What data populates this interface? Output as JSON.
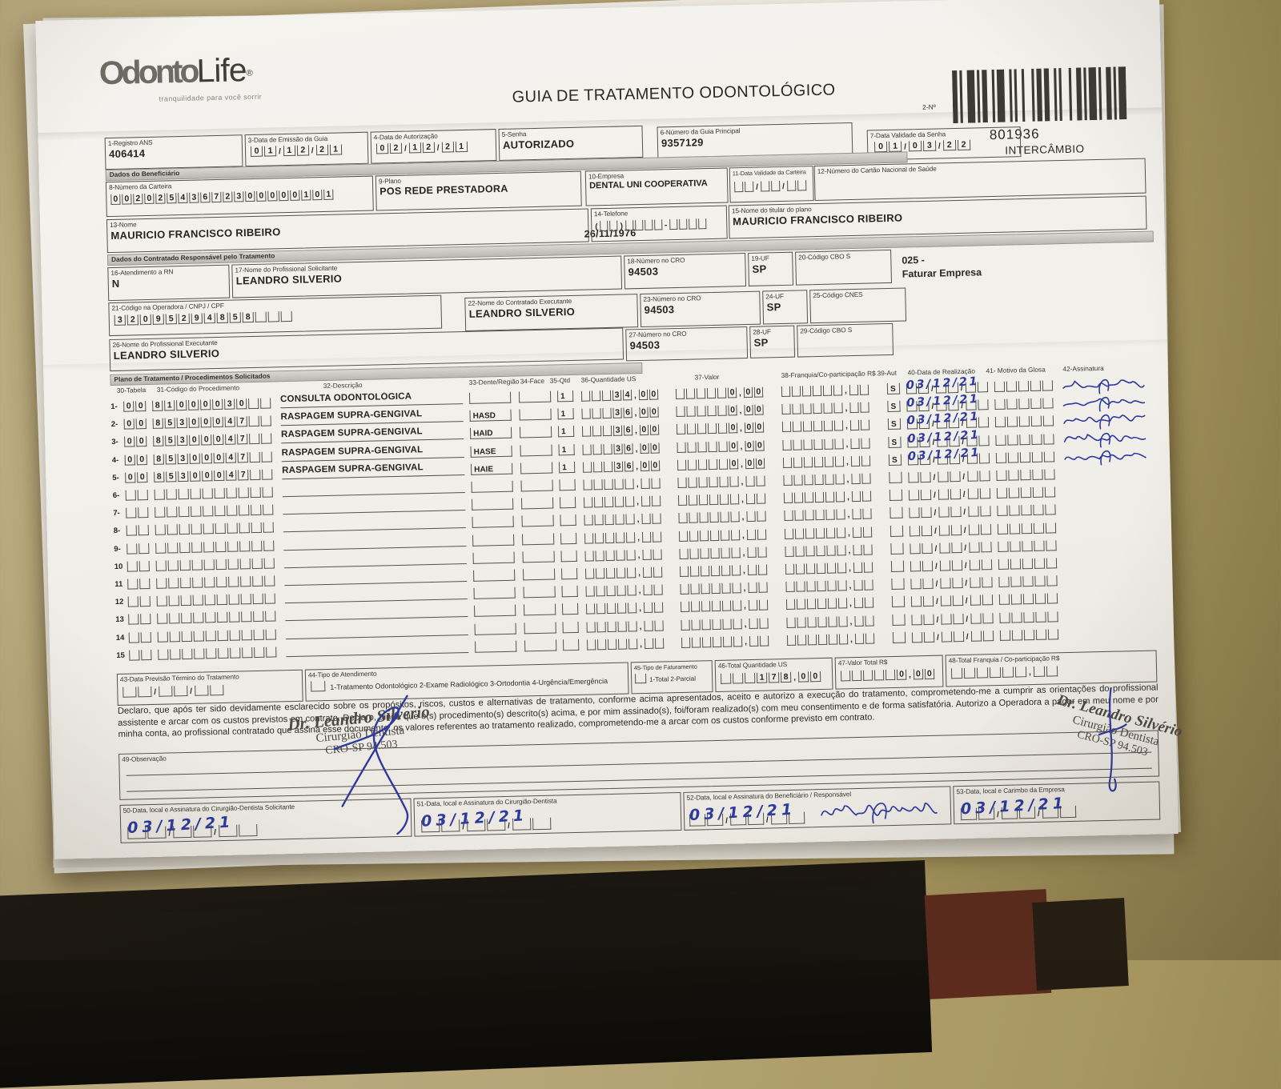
{
  "colors": {
    "hand_ink": "#2e3a9e",
    "print_ink": "#2b2824",
    "paper": "#f1efe9",
    "desk": "#b5a476",
    "bar_gray": "#c7c5bf"
  },
  "logo": {
    "word1": "Odonto",
    "word2": "Life",
    "reg": "®",
    "tagline": "tranquilidade para você sorrir"
  },
  "title": "GUIA DE TRATAMENTO ODONTOLÓGICO",
  "code_area": {
    "n_label": "2-Nº",
    "number": "801936",
    "tag": "INTERCÂMBIO"
  },
  "sections": {
    "beneficiario": "Dados do Beneficiário",
    "contratado": "Dados do Contratado Responsável pelo Tratamento",
    "plano": "Plano de Tratamento / Procedimentos Solicitados"
  },
  "f1": {
    "label": "1-Registro ANS",
    "value": "406414"
  },
  "f3": {
    "label": "3-Data de Emissão da Guia",
    "value": "01/12/21"
  },
  "f4": {
    "label": "4-Data de Autorização",
    "value": "02/12/21"
  },
  "f5": {
    "label": "5-Senha",
    "value": "AUTORIZADO"
  },
  "f6": {
    "label": "6-Número da Guia Principal",
    "value": "9357129"
  },
  "f7": {
    "label": "7-Data Validade da Senha",
    "value": "01/03/22"
  },
  "f8": {
    "label": "8-Número da Carteira",
    "value": "00202543672300000101"
  },
  "f9": {
    "label": "9-Plano",
    "value": "POS REDE PRESTADORA"
  },
  "f10": {
    "label": "10-Empresa",
    "value": "DENTAL UNI  COOPERATIVA"
  },
  "f11": {
    "label": "11-Data Validade da Carteira",
    "value": ""
  },
  "f12": {
    "label": "12-Número do Cartão Nacional de Saúde",
    "value": ""
  },
  "f13": {
    "label": "13-Nome",
    "value": "MAURICIO FRANCISCO RIBEIRO",
    "birthdate": "26/11/1976"
  },
  "f14": {
    "label": "14-Telefone",
    "value": ""
  },
  "f15": {
    "label": "15-Nome do titular do plano",
    "value": "MAURICIO FRANCISCO RIBEIRO"
  },
  "f16": {
    "label": "16-Atendimento a RN",
    "value": "N"
  },
  "f17": {
    "label": "17-Nome do Profissional Solicitante",
    "value": "LEANDRO SILVERIO"
  },
  "f18": {
    "label": "18-Número no CRO",
    "value": "94503"
  },
  "f19": {
    "label": "19-UF",
    "value": "SP"
  },
  "f20": {
    "label": "20-Código CBO S",
    "value": ""
  },
  "billing_note": {
    "line1": "025 -",
    "line2": "Faturar Empresa"
  },
  "f21": {
    "label": "21-Código na Operadora / CNPJ / CPF",
    "value": "32095294858"
  },
  "f22": {
    "label": "22-Nome do Contratado Executante",
    "value": "LEANDRO SILVERIO"
  },
  "f23": {
    "label": "23-Número no CRO",
    "value": "94503"
  },
  "f24": {
    "label": "24-UF",
    "value": "SP"
  },
  "f25": {
    "label": "25-Código CNES",
    "value": ""
  },
  "f26": {
    "label": "26-Nome do Profissional Executante",
    "value": "LEANDRO SILVERIO"
  },
  "f27": {
    "label": "27-Número no CRO",
    "value": "94503"
  },
  "f28": {
    "label": "28-UF",
    "value": "SP"
  },
  "f29": {
    "label": "29-Código CBO S",
    "value": ""
  },
  "table": {
    "headers": [
      "30-Tabela",
      "31-Código do Procedimento",
      "32-Descrição",
      "33-Dente/Região",
      "34-Face",
      "35-Qtd",
      "36-Quantidade US",
      "37-Valor",
      "38-Franquia/Co-participação R$",
      "39-Aut",
      "40-Data de Realização",
      "41- Motivo da Glosa",
      "42-Assinatura"
    ],
    "rows": [
      {
        "n": "1",
        "tabela": "00",
        "codigo": "81000030",
        "descricao": "CONSULTA ODONTOLÓGICA",
        "dente": "",
        "qtd": "1",
        "us": "34,00",
        "valor": "0,00",
        "franquia": "",
        "aut": "S",
        "data": "03/12/21",
        "signed": true
      },
      {
        "n": "2",
        "tabela": "00",
        "codigo": "85300047",
        "descricao": "RASPAGEM SUPRA-GENGIVAL",
        "dente": "HASD",
        "qtd": "1",
        "us": "36,00",
        "valor": "0,00",
        "franquia": "",
        "aut": "S",
        "data": "03/12/21",
        "signed": true
      },
      {
        "n": "3",
        "tabela": "00",
        "codigo": "85300047",
        "descricao": "RASPAGEM SUPRA-GENGIVAL",
        "dente": "HAID",
        "qtd": "1",
        "us": "36,00",
        "valor": "0,00",
        "franquia": "",
        "aut": "S",
        "data": "03/12/21",
        "signed": true
      },
      {
        "n": "4",
        "tabela": "00",
        "codigo": "85300047",
        "descricao": "RASPAGEM SUPRA-GENGIVAL",
        "dente": "HASE",
        "qtd": "1",
        "us": "36,00",
        "valor": "0,00",
        "franquia": "",
        "aut": "S",
        "data": "03/12/21",
        "signed": true
      },
      {
        "n": "5",
        "tabela": "00",
        "codigo": "85300047",
        "descricao": "RASPAGEM SUPRA-GENGIVAL",
        "dente": "HAIE",
        "qtd": "1",
        "us": "36,00",
        "valor": "0,00",
        "franquia": "",
        "aut": "S",
        "data": "03/12/21",
        "signed": true
      },
      {
        "n": "6",
        "tabela": "",
        "codigo": "",
        "descricao": "",
        "dente": "",
        "qtd": "",
        "us": "",
        "valor": "",
        "franquia": "",
        "aut": "",
        "data": "",
        "signed": false
      },
      {
        "n": "7",
        "tabela": "",
        "codigo": "",
        "descricao": "",
        "dente": "",
        "qtd": "",
        "us": "",
        "valor": "",
        "franquia": "",
        "aut": "",
        "data": "",
        "signed": false
      },
      {
        "n": "8",
        "tabela": "",
        "codigo": "",
        "descricao": "",
        "dente": "",
        "qtd": "",
        "us": "",
        "valor": "",
        "franquia": "",
        "aut": "",
        "data": "",
        "signed": false
      },
      {
        "n": "9",
        "tabela": "",
        "codigo": "",
        "descricao": "",
        "dente": "",
        "qtd": "",
        "us": "",
        "valor": "",
        "franquia": "",
        "aut": "",
        "data": "",
        "signed": false
      },
      {
        "n": "10",
        "tabela": "",
        "codigo": "",
        "descricao": "",
        "dente": "",
        "qtd": "",
        "us": "",
        "valor": "",
        "franquia": "",
        "aut": "",
        "data": "",
        "signed": false
      },
      {
        "n": "11",
        "tabela": "",
        "codigo": "",
        "descricao": "",
        "dente": "",
        "qtd": "",
        "us": "",
        "valor": "",
        "franquia": "",
        "aut": "",
        "data": "",
        "signed": false
      },
      {
        "n": "12",
        "tabela": "",
        "codigo": "",
        "descricao": "",
        "dente": "",
        "qtd": "",
        "us": "",
        "valor": "",
        "franquia": "",
        "aut": "",
        "data": "",
        "signed": false
      },
      {
        "n": "13",
        "tabela": "",
        "codigo": "",
        "descricao": "",
        "dente": "",
        "qtd": "",
        "us": "",
        "valor": "",
        "franquia": "",
        "aut": "",
        "data": "",
        "signed": false
      },
      {
        "n": "14",
        "tabela": "",
        "codigo": "",
        "descricao": "",
        "dente": "",
        "qtd": "",
        "us": "",
        "valor": "",
        "franquia": "",
        "aut": "",
        "data": "",
        "signed": false
      },
      {
        "n": "15",
        "tabela": "",
        "codigo": "",
        "descricao": "",
        "dente": "",
        "qtd": "",
        "us": "",
        "valor": "",
        "franquia": "",
        "aut": "",
        "data": "",
        "signed": false
      }
    ]
  },
  "f43": {
    "label": "43-Data Previsão Término do Tratamento",
    "value": ""
  },
  "f44": {
    "label": "44-Tipo de Atendimento",
    "options": "1-Tratamento Odontológico  2-Exame Radiológico  3-Ortodontia  4-Urgência/Emergência",
    "value": ""
  },
  "f45": {
    "label": "45-Tipo de Faturamento",
    "options": "1-Total  2-Parcial",
    "value": ""
  },
  "f46": {
    "label": "46-Total Quantidade US",
    "value": "178,00"
  },
  "f47": {
    "label": "47-Valor Total R$",
    "value": "0,00"
  },
  "f48": {
    "label": "48-Total Franquia / Co-participação R$",
    "value": ""
  },
  "declaration": "Declaro, que após ter sido devidamente esclarecido sobre os propósitos, riscos, custos e alternativas de tratamento, conforme acima apresentados, aceito e autorizo a execução do tratamento, comprometendo-me a cumprir as orientações do profissional assistente e arcar com os custos previstos em contrato. Declaro, ainda que o(s) procedimento(s) descrito(s) acima, e por mim assinado(s), foi/foram realizado(s) com meu consentimento e de forma satisfatória. Autorizo a Operadora a pagar em meu nome e por minha conta, ao profissional contratado que assina esse documento, os valores referentes ao tratamento realizado, comprometendo-me a arcar com os custos conforme previsto em contrato.",
  "f49": {
    "label": "49-Observação"
  },
  "stamp": {
    "line1": "Dr. Leandro Silverio",
    "line2": "Cirurgião Dentista",
    "line3": "CRO-SP 94.503"
  },
  "stamp2": {
    "line1": "Dr. Leandro Silvério",
    "line2": "Cirurgião Dentista",
    "line3": "CRO-SP 94.503"
  },
  "f50": {
    "label": "50-Data, local e Assinatura do Cirurgião-Dentista Solicitante",
    "value": "03/12/21"
  },
  "f51": {
    "label": "51-Data, local e Assinatura do Cirurgião-Dentista",
    "value": "03/12/21"
  },
  "f52": {
    "label": "52-Data, local e Assinatura do Beneficiário / Responsável",
    "value": "03/12/21",
    "signed": true
  },
  "f53": {
    "label": "53-Data, local e Carimbo da Empresa",
    "value": "03/12/21"
  }
}
